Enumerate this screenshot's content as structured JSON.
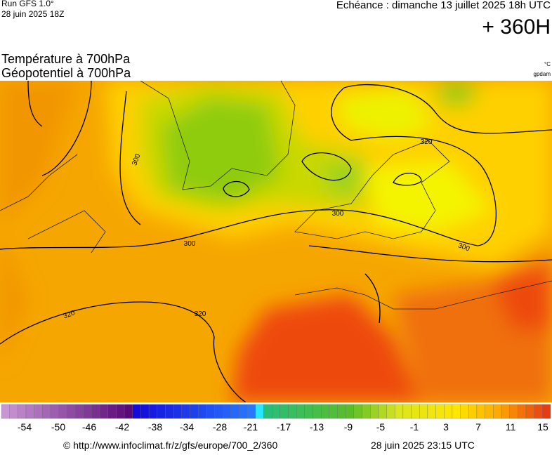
{
  "header": {
    "run": "Run GFS 1.0°",
    "date": "28 juin 2025 18Z",
    "echeance": "Echéance : dimanche 13 juillet 2025 18h UTC",
    "lead": "+ 360H"
  },
  "titles": [
    "Température à 700hPa",
    "Géopotentiel à 700hPa"
  ],
  "units": [
    "°C",
    "gpdam"
  ],
  "colorbar": {
    "labels": [
      -54,
      -50,
      -46,
      -42,
      -38,
      -34,
      -28,
      -21,
      -17,
      -13,
      -9,
      -5,
      -1,
      3,
      7,
      11,
      15
    ]
  },
  "contour_labels": [
    "300",
    "300",
    "300",
    "300",
    "320",
    "320",
    "320"
  ],
  "footer": {
    "url": "© http://www.infoclimat.fr/z/gfs/europe/700_2/360",
    "time": "28 juin 2025 23:15 UTC"
  }
}
